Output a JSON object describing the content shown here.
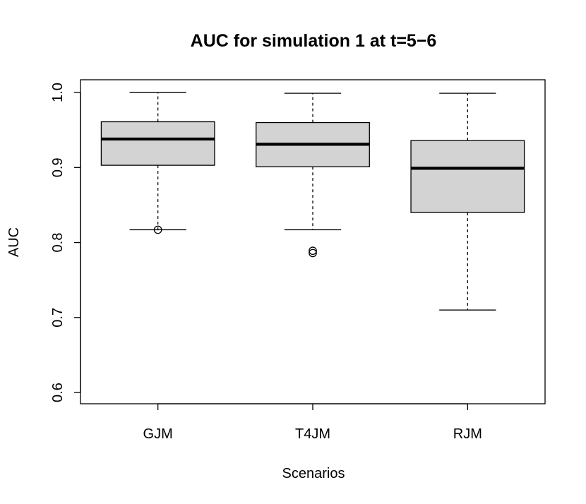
{
  "chart_data": {
    "type": "boxplot",
    "title": "AUC for simulation 1 at t=5−6",
    "xlabel": "Scenarios",
    "ylabel": "AUC",
    "categories": [
      "GJM",
      "T4JM",
      "RJM"
    ],
    "ylim": [
      0.585,
      1.017
    ],
    "yticks": [
      0.6,
      0.7,
      0.8,
      0.9,
      1.0
    ],
    "ytick_labels": [
      "0.6",
      "0.7",
      "0.8",
      "0.9",
      "1.0"
    ],
    "grid": false,
    "legend": "none",
    "box_fill": "#d3d3d3",
    "boxes": [
      {
        "name": "GJM",
        "whisker_low": 0.817,
        "q1": 0.903,
        "median": 0.938,
        "q3": 0.961,
        "whisker_high": 1.0,
        "outliers": [
          0.817
        ]
      },
      {
        "name": "T4JM",
        "whisker_low": 0.817,
        "q1": 0.901,
        "median": 0.931,
        "q3": 0.96,
        "whisker_high": 0.999,
        "outliers": [
          0.789,
          0.786
        ]
      },
      {
        "name": "RJM",
        "whisker_low": 0.71,
        "q1": 0.84,
        "median": 0.899,
        "q3": 0.936,
        "whisker_high": 0.999,
        "outliers": []
      }
    ]
  }
}
